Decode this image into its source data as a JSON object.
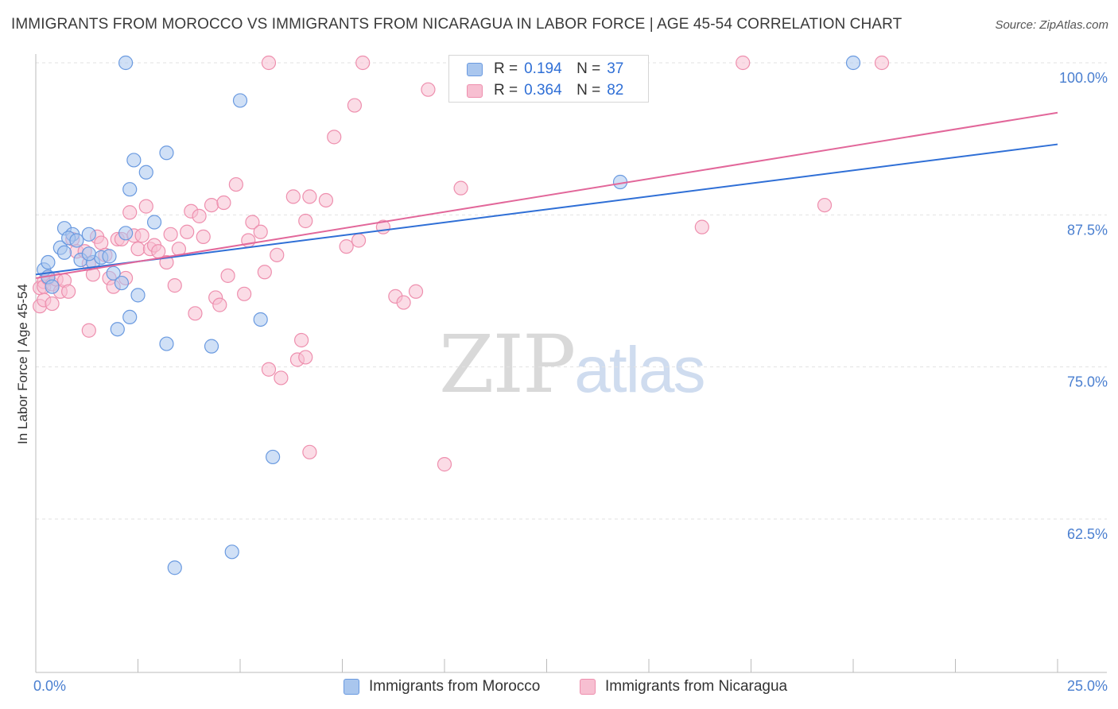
{
  "header": {
    "title": "IMMIGRANTS FROM MOROCCO VS IMMIGRANTS FROM NICARAGUA IN LABOR FORCE | AGE 45-54 CORRELATION CHART",
    "source": "Source: ZipAtlas.com"
  },
  "watermark": {
    "zip": "ZIP",
    "atlas": "atlas"
  },
  "legend": {
    "morocco": {
      "r_label": "R =",
      "r_value": "0.194",
      "n_label": "N =",
      "n_value": "37"
    },
    "nicaragua": {
      "r_label": "R =",
      "r_value": "0.364",
      "n_label": "N =",
      "n_value": "82"
    }
  },
  "bottom_legend": {
    "morocco": "Immigrants from Morocco",
    "nicaragua": "Immigrants from Nicaragua"
  },
  "colors": {
    "morocco_fill": "#a9c6ee",
    "morocco_stroke": "#6a9ae0",
    "morocco_line": "#2f6fd6",
    "nicaragua_fill": "#f7bfd1",
    "nicaragua_stroke": "#ee8fae",
    "nicaragua_line": "#e2679a",
    "grid": "#e2e2e2",
    "axis": "#bbbbbb"
  },
  "chart_data": {
    "type": "scatter",
    "title": "IMMIGRANTS FROM MOROCCO VS IMMIGRANTS FROM NICARAGUA IN LABOR FORCE | AGE 45-54 CORRELATION CHART",
    "xlabel": "",
    "ylabel": "In Labor Force | Age 45-54",
    "xlim": [
      0,
      25
    ],
    "ylim": [
      50,
      102
    ],
    "x_tick_labels": [
      "0.0%",
      "25.0%"
    ],
    "x_ticks": [
      0,
      25
    ],
    "y_ticks": [
      62.5,
      75.0,
      87.5,
      100.0
    ],
    "y_tick_labels": [
      "62.5%",
      "75.0%",
      "87.5%",
      "100.0%"
    ],
    "grid": true,
    "series": [
      {
        "name": "Immigrants from Morocco",
        "r": 0.194,
        "n": 37,
        "trend": {
          "x": [
            0,
            25
          ],
          "y": [
            82.6,
            93.3
          ]
        },
        "points": [
          [
            0.2,
            83.0
          ],
          [
            0.3,
            83.6
          ],
          [
            0.3,
            82.4
          ],
          [
            0.6,
            84.8
          ],
          [
            0.7,
            84.4
          ],
          [
            0.7,
            86.4
          ],
          [
            0.9,
            85.9
          ],
          [
            0.8,
            85.6
          ],
          [
            1.0,
            85.4
          ],
          [
            1.1,
            83.8
          ],
          [
            1.3,
            85.9
          ],
          [
            1.4,
            83.6
          ],
          [
            1.6,
            84.0
          ],
          [
            1.8,
            84.1
          ],
          [
            1.9,
            82.7
          ],
          [
            2.2,
            86.0
          ],
          [
            2.0,
            78.1
          ],
          [
            2.3,
            79.1
          ],
          [
            2.1,
            81.9
          ],
          [
            2.5,
            80.9
          ],
          [
            2.2,
            100.0
          ],
          [
            2.3,
            89.6
          ],
          [
            2.4,
            92.0
          ],
          [
            2.7,
            91.0
          ],
          [
            2.9,
            86.9
          ],
          [
            3.2,
            92.6
          ],
          [
            3.2,
            76.9
          ],
          [
            4.3,
            76.7
          ],
          [
            4.8,
            59.8
          ],
          [
            3.4,
            58.5
          ],
          [
            5.0,
            96.9
          ],
          [
            5.5,
            78.9
          ],
          [
            5.8,
            67.6
          ],
          [
            20.0,
            100.0
          ],
          [
            14.3,
            90.2
          ],
          [
            0.4,
            81.6
          ],
          [
            1.3,
            84.3
          ]
        ]
      },
      {
        "name": "Immigrants from Nicaragua",
        "r": 0.364,
        "n": 82,
        "trend": {
          "x": [
            0,
            25
          ],
          "y": [
            82.3,
            95.9
          ]
        },
        "points": [
          [
            0.1,
            81.5
          ],
          [
            0.2,
            82.0
          ],
          [
            0.2,
            81.6
          ],
          [
            0.3,
            82.3
          ],
          [
            0.4,
            81.8
          ],
          [
            0.5,
            82.2
          ],
          [
            0.6,
            81.2
          ],
          [
            0.7,
            82.1
          ],
          [
            0.8,
            81.2
          ],
          [
            0.9,
            85.5
          ],
          [
            1.0,
            84.5
          ],
          [
            1.2,
            84.5
          ],
          [
            1.3,
            83.5
          ],
          [
            1.3,
            78.0
          ],
          [
            1.4,
            82.6
          ],
          [
            1.5,
            85.7
          ],
          [
            1.6,
            85.2
          ],
          [
            1.7,
            84.2
          ],
          [
            1.8,
            82.3
          ],
          [
            1.9,
            81.6
          ],
          [
            2.0,
            85.5
          ],
          [
            2.1,
            85.5
          ],
          [
            2.2,
            82.3
          ],
          [
            2.3,
            87.7
          ],
          [
            2.4,
            85.8
          ],
          [
            2.5,
            84.7
          ],
          [
            2.6,
            85.8
          ],
          [
            2.7,
            88.2
          ],
          [
            2.8,
            84.7
          ],
          [
            2.9,
            85.0
          ],
          [
            3.0,
            84.5
          ],
          [
            3.2,
            83.6
          ],
          [
            3.3,
            85.9
          ],
          [
            3.4,
            81.7
          ],
          [
            3.5,
            84.7
          ],
          [
            3.7,
            86.1
          ],
          [
            3.8,
            87.8
          ],
          [
            3.9,
            79.4
          ],
          [
            4.0,
            87.4
          ],
          [
            4.1,
            85.7
          ],
          [
            4.3,
            88.3
          ],
          [
            4.4,
            80.7
          ],
          [
            4.5,
            80.1
          ],
          [
            4.6,
            88.5
          ],
          [
            4.7,
            82.5
          ],
          [
            4.9,
            90.0
          ],
          [
            5.1,
            81.0
          ],
          [
            5.2,
            85.4
          ],
          [
            5.3,
            86.9
          ],
          [
            5.5,
            86.1
          ],
          [
            5.6,
            82.8
          ],
          [
            5.7,
            74.8
          ],
          [
            5.9,
            84.2
          ],
          [
            6.0,
            74.1
          ],
          [
            5.7,
            100.0
          ],
          [
            6.3,
            89.0
          ],
          [
            6.4,
            75.6
          ],
          [
            6.5,
            77.2
          ],
          [
            6.6,
            75.8
          ],
          [
            6.6,
            87.0
          ],
          [
            6.7,
            68.0
          ],
          [
            6.7,
            89.0
          ],
          [
            7.1,
            88.7
          ],
          [
            7.3,
            93.9
          ],
          [
            7.6,
            84.9
          ],
          [
            7.8,
            96.5
          ],
          [
            7.9,
            85.4
          ],
          [
            8.0,
            100.0
          ],
          [
            8.5,
            86.5
          ],
          [
            8.8,
            80.8
          ],
          [
            9.0,
            80.3
          ],
          [
            9.3,
            81.2
          ],
          [
            9.6,
            97.8
          ],
          [
            10.0,
            67.0
          ],
          [
            10.4,
            89.7
          ],
          [
            16.3,
            86.5
          ],
          [
            17.3,
            100.0
          ],
          [
            19.3,
            88.3
          ],
          [
            20.7,
            100.0
          ],
          [
            0.1,
            80.0
          ],
          [
            0.2,
            80.5
          ],
          [
            0.4,
            80.2
          ]
        ]
      }
    ]
  }
}
